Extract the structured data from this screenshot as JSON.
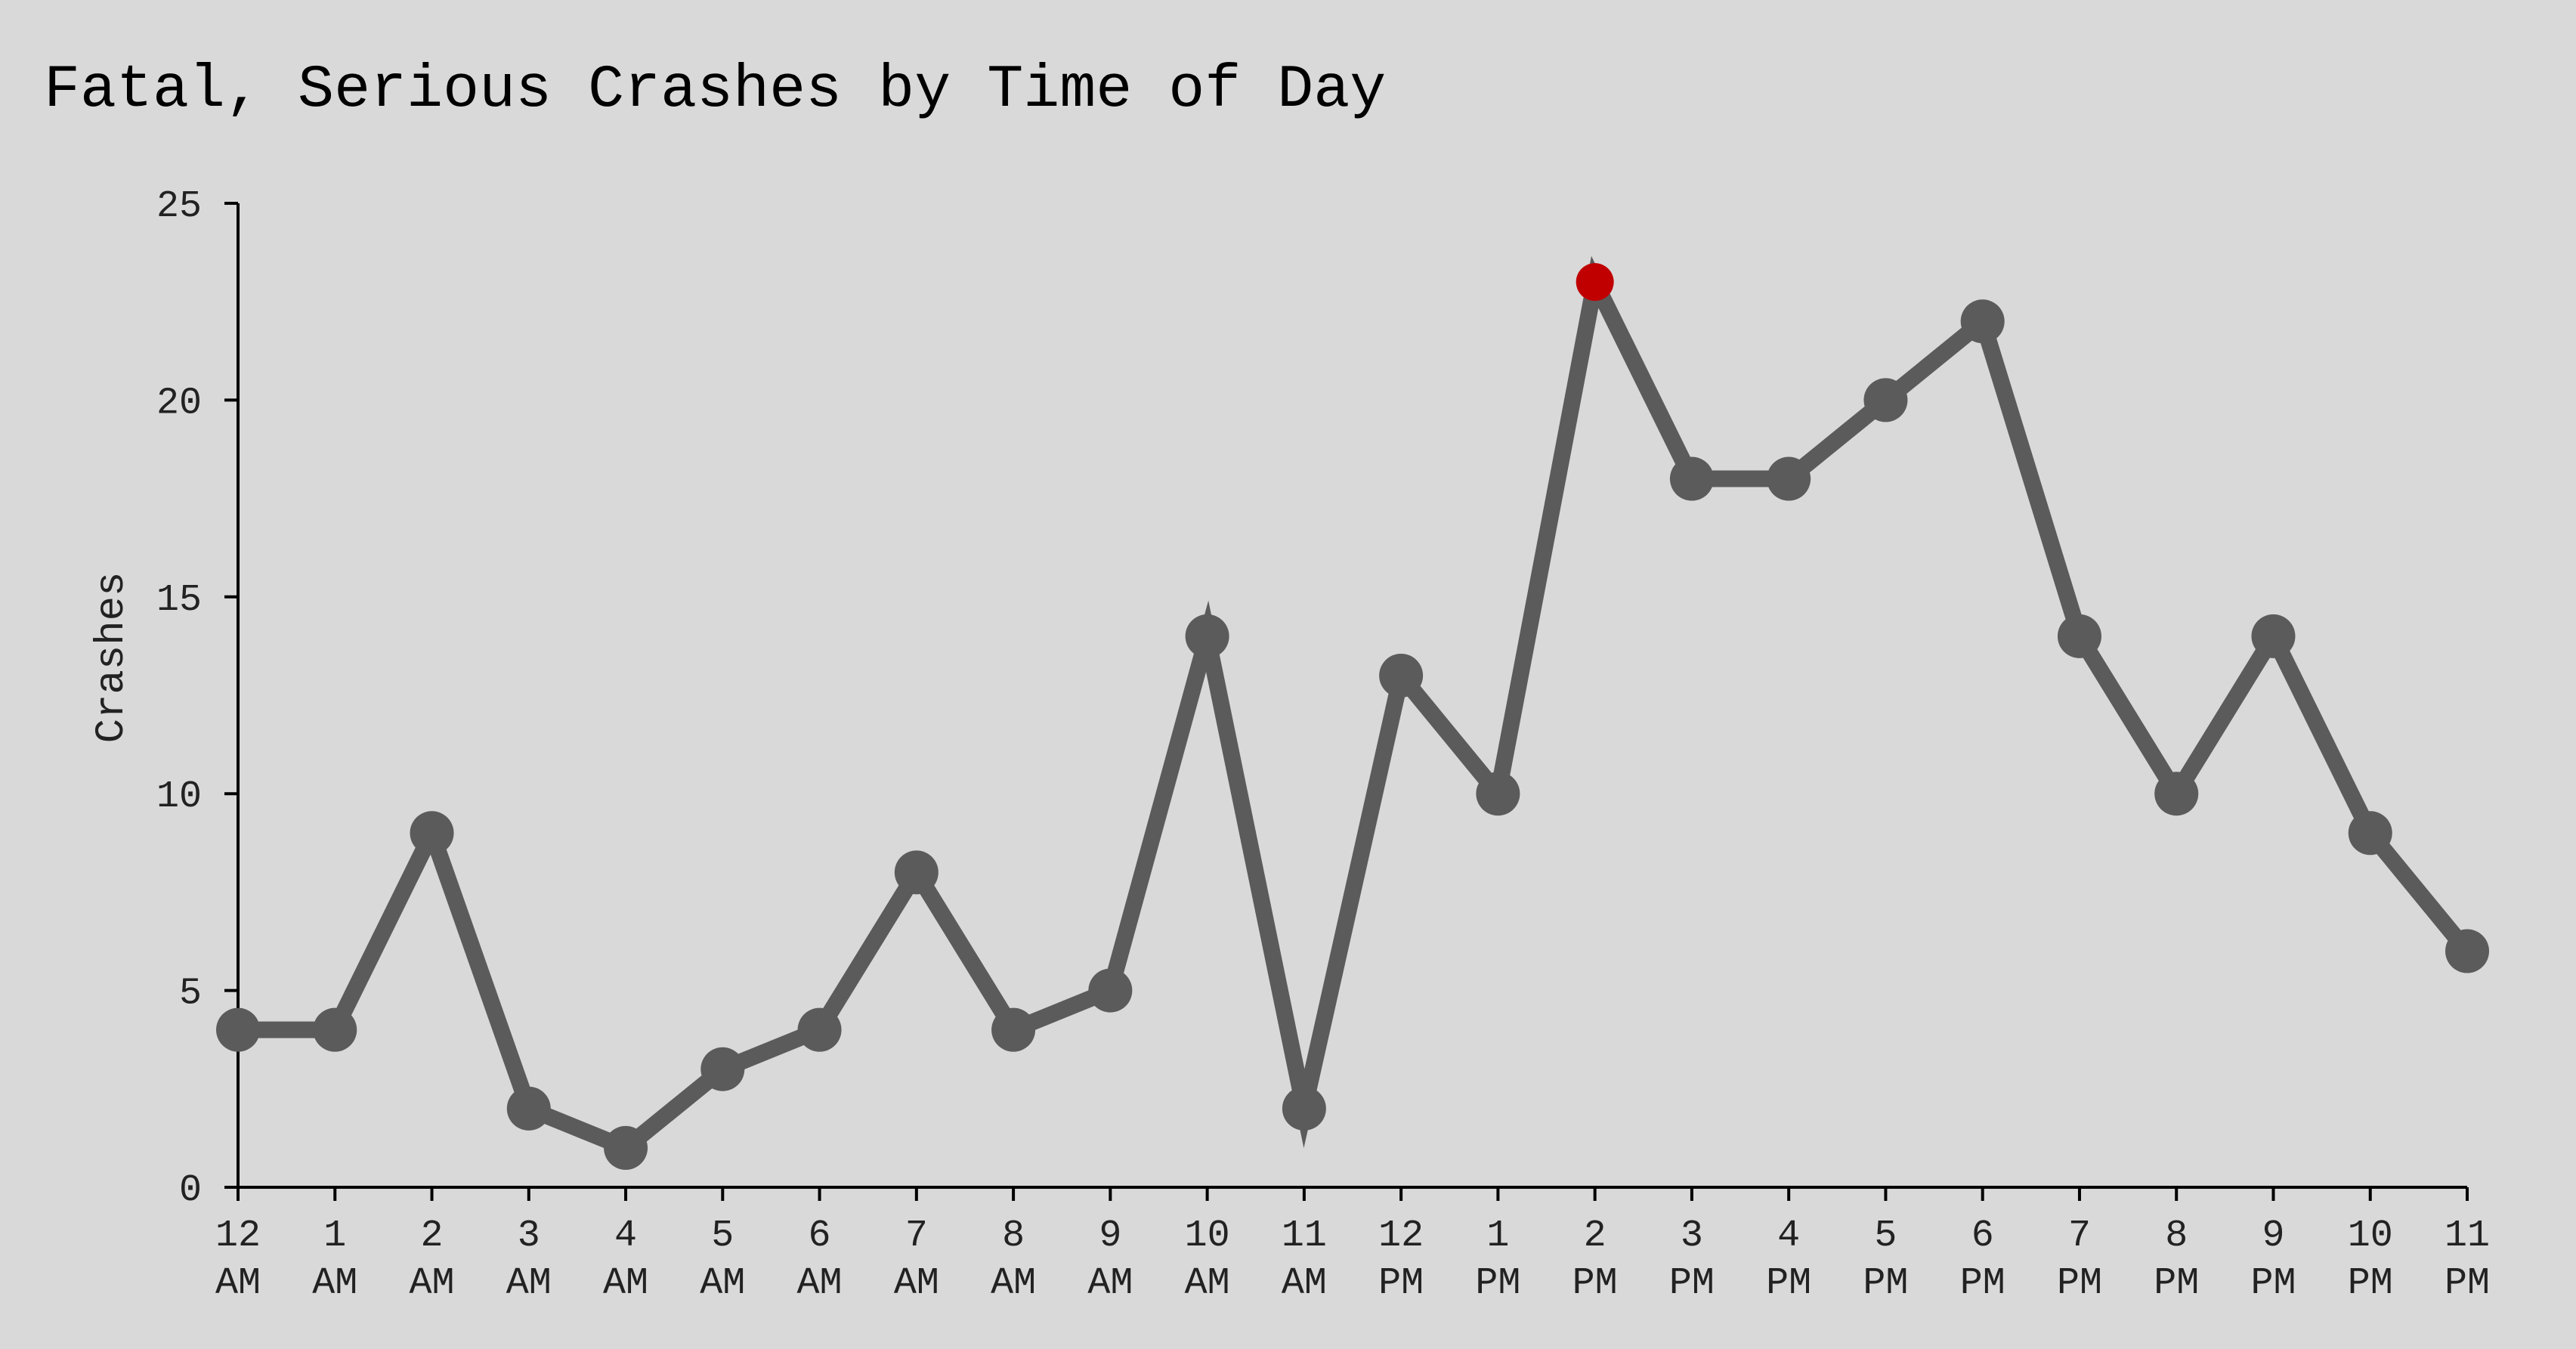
{
  "chart_data": {
    "type": "line",
    "title": "Fatal, Serious Crashes by Time of Day",
    "ylabel": "Crashes",
    "xlabel": "",
    "ylim": [
      0,
      25
    ],
    "yticks": [
      0,
      5,
      10,
      15,
      20,
      25
    ],
    "grid": false,
    "categories": [
      [
        "12",
        "AM"
      ],
      [
        "1",
        "AM"
      ],
      [
        "2",
        "AM"
      ],
      [
        "3",
        "AM"
      ],
      [
        "4",
        "AM"
      ],
      [
        "5",
        "AM"
      ],
      [
        "6",
        "AM"
      ],
      [
        "7",
        "AM"
      ],
      [
        "8",
        "AM"
      ],
      [
        "9",
        "AM"
      ],
      [
        "10",
        "AM"
      ],
      [
        "11",
        "AM"
      ],
      [
        "12",
        "PM"
      ],
      [
        "1",
        "PM"
      ],
      [
        "2",
        "PM"
      ],
      [
        "3",
        "PM"
      ],
      [
        "4",
        "PM"
      ],
      [
        "5",
        "PM"
      ],
      [
        "6",
        "PM"
      ],
      [
        "7",
        "PM"
      ],
      [
        "8",
        "PM"
      ],
      [
        "9",
        "PM"
      ],
      [
        "10",
        "PM"
      ],
      [
        "11",
        "PM"
      ]
    ],
    "values": [
      4,
      4,
      9,
      2,
      1,
      3,
      4,
      8,
      4,
      5,
      14,
      2,
      13,
      10,
      23,
      18,
      18,
      20,
      22,
      14,
      10,
      14,
      9,
      6
    ],
    "line_color": "#5b5b5b",
    "highlight_color": "#c00000",
    "highlight_index": 14,
    "axis_color": "#000000",
    "background": "#d9d9d9"
  }
}
